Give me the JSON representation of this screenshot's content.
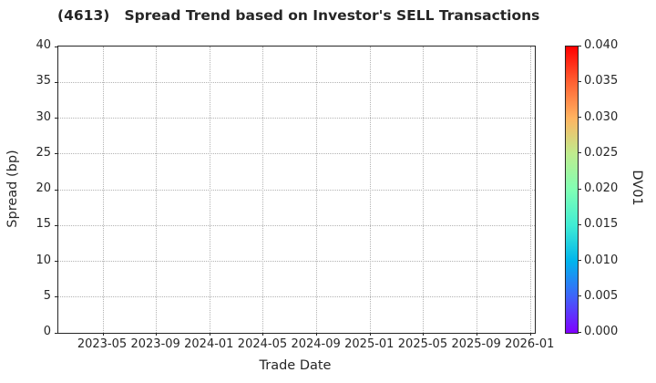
{
  "figure": {
    "background": "#ffffff",
    "text_color": "#262626",
    "grid_color": "#b3b3b3",
    "spine_color": "#262626"
  },
  "chart_data": {
    "type": "scatter",
    "title": "(4613)   Spread Trend based on Investor's SELL Transactions",
    "xlabel": "Trade Date",
    "ylabel": "Spread (bp)",
    "x_tick_labels": [
      "2023-05",
      "2023-09",
      "2024-01",
      "2024-05",
      "2024-09",
      "2025-01",
      "2025-05",
      "2025-09",
      "2026-01"
    ],
    "y_tick_labels": [
      "0",
      "5",
      "10",
      "15",
      "20",
      "25",
      "30",
      "35",
      "40"
    ],
    "ylim": [
      0,
      40
    ],
    "grid": "dotted",
    "legend_position": "none",
    "points": [],
    "colorbar": {
      "label": "DV01",
      "tick_labels": [
        "0.000",
        "0.005",
        "0.010",
        "0.015",
        "0.020",
        "0.025",
        "0.030",
        "0.035",
        "0.040"
      ],
      "range": [
        0.0,
        0.04
      ],
      "colormap": "rainbow",
      "gradient_stops": [
        "#8000ff",
        "#4062fa",
        "#00b4ec",
        "#40ecd4",
        "#80ffb4",
        "#bfec8e",
        "#ffb461",
        "#ff6132",
        "#ff0000"
      ]
    }
  }
}
